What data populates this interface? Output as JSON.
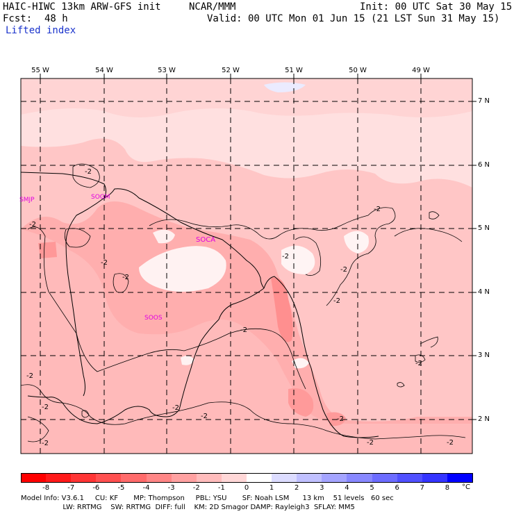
{
  "header": {
    "model_title": "HAIC-HIWC 13km ARW-GFS init",
    "org": "NCAR/MMM",
    "init": "Init: 00 UTC Sat 30 May 15",
    "fcst_label": "Fcst:",
    "fcst_value": "48 h",
    "valid": "Valid: 00 UTC Mon 01 Jun 15 (21 LST Sun 31 May 15)",
    "field": "Lifted index"
  },
  "map": {
    "lon_labels": [
      "55 W",
      "54 W",
      "53 W",
      "52 W",
      "51 W",
      "50 W",
      "49 W"
    ],
    "lat_labels": [
      "7 N",
      "6 N",
      "5 N",
      "4 N",
      "3 N",
      "2 N"
    ],
    "stations": [
      "SMJP",
      "SOGM",
      "SOCA",
      "SOOS"
    ],
    "contour_labels": [
      "-2",
      "-2",
      "-2",
      "-2",
      "-2",
      "-2",
      "-2",
      "-2",
      "-2",
      "-2",
      "-2",
      "-2",
      "-2",
      "-2",
      "-2",
      "-2",
      "-2",
      "-2"
    ]
  },
  "colorbar": {
    "labels": [
      "-8",
      "-7",
      "-6",
      "-5",
      "-4",
      "-3",
      "-2",
      "-1",
      "0",
      "1",
      "2",
      "3",
      "4",
      "5",
      "6",
      "7",
      "8"
    ],
    "unit": "°C",
    "colors": [
      "#ff0000",
      "#ff2020",
      "#ff4040",
      "#ff6060",
      "#ff8080",
      "#ffa0a0",
      "#ffc0c0",
      "#ffe0e0",
      "#ffffff",
      "#e6e6ff",
      "#c8c8ff",
      "#a8a8ff",
      "#8888ff",
      "#6868ff",
      "#4848ff",
      "#2424ff",
      "#0000ff"
    ]
  },
  "footer": {
    "line1": "Model Info: V3.6.1     CU: KF       MP: Thompson     PBL: YSU       SF: Noah LSM      13 km    51 levels   60 sec",
    "line2": "                   LW: RRTMG    SW: RRTMG  DIFF: full    KM: 2D Smagor DAMP: Rayleigh3  SFLAY: MM5"
  }
}
